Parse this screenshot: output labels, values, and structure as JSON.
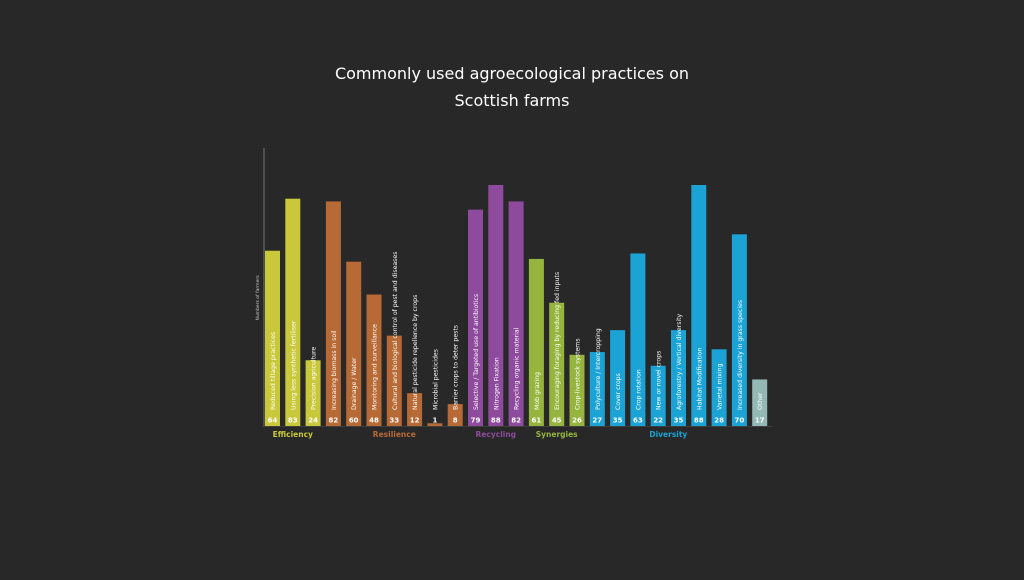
{
  "chart_data": {
    "type": "bar",
    "title": [
      "Commonly used agroecological practices on",
      "Scottish farms"
    ],
    "ylabel": "Numbers of farmers",
    "ylim": [
      0,
      92
    ],
    "grid": false,
    "categories": [
      "Reduced tillage practices",
      "Using less synthetic fertiliser",
      "Precision agriculture",
      "Increasing biomass in soil",
      "Drainage / Water",
      "Monitoring and surveillance",
      "Cultural and biological control of pest and diseases",
      "Natural pesticide repellence by crops",
      "Microbial pesticides",
      "Barrier crops to deter pests",
      "Selective / Targeted use of antibiotics",
      "Nitrogen Fixation",
      "Recycling organic material",
      "Mob grazing",
      "Encouraging foraging by reducing fed inputs",
      "Crop-livestock systems",
      "Polyculture / Intercropping",
      "Cover crops",
      "Crop rotation",
      "New or novel crops",
      "Agroforestry / Vertical diversity",
      "Habitat Modification",
      "Varietal mixing",
      "Increased diversity in grass species",
      "Other"
    ],
    "values": [
      64,
      83,
      24,
      82,
      60,
      48,
      33,
      12,
      1,
      8,
      79,
      88,
      82,
      61,
      45,
      26,
      27,
      35,
      63,
      22,
      35,
      88,
      28,
      70,
      17
    ],
    "bar_groups": [
      0,
      0,
      0,
      1,
      1,
      1,
      1,
      1,
      1,
      1,
      2,
      2,
      2,
      3,
      3,
      3,
      4,
      4,
      4,
      4,
      4,
      4,
      4,
      4,
      5
    ],
    "groups": [
      {
        "name": "Efficiency",
        "color": "#c9c83a"
      },
      {
        "name": "Resilience",
        "color": "#b86a36"
      },
      {
        "name": "Recycling",
        "color": "#8e4a9c"
      },
      {
        "name": "Synergies",
        "color": "#95b53e"
      },
      {
        "name": "Diversity",
        "color": "#1aa3d4"
      },
      {
        "name": "",
        "color": "#93b8b5"
      }
    ]
  }
}
